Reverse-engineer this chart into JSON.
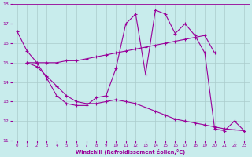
{
  "xlabel": "Windchill (Refroidissement éolien,°C)",
  "bg_color": "#c8ecec",
  "line_color": "#990099",
  "grid_color": "#aacccc",
  "ylim": [
    11,
    18
  ],
  "xlim": [
    -0.5,
    23.5
  ],
  "yticks": [
    11,
    12,
    13,
    14,
    15,
    16,
    17,
    18
  ],
  "xticks": [
    0,
    1,
    2,
    3,
    4,
    5,
    6,
    7,
    8,
    9,
    10,
    11,
    12,
    13,
    14,
    15,
    16,
    17,
    18,
    19,
    20,
    21,
    22,
    23
  ],
  "line1_x": [
    0,
    1,
    2,
    3,
    4,
    5,
    6,
    7,
    8,
    9,
    10,
    11,
    12,
    13,
    14,
    15,
    16,
    17,
    18,
    19,
    20,
    21,
    22,
    23
  ],
  "line1_y": [
    16.6,
    15.6,
    15.0,
    14.2,
    13.3,
    12.9,
    12.8,
    12.8,
    13.2,
    13.3,
    14.7,
    17.0,
    17.5,
    14.4,
    17.7,
    17.5,
    16.5,
    17.0,
    16.4,
    15.5,
    11.6,
    11.5,
    12.0,
    11.5
  ],
  "line2_x": [
    1,
    2,
    3,
    4,
    5,
    6,
    7,
    8,
    9,
    10,
    11,
    12,
    13,
    14,
    15,
    16,
    17,
    18,
    19,
    20
  ],
  "line2_y": [
    15.0,
    15.0,
    15.0,
    15.0,
    15.1,
    15.1,
    15.2,
    15.3,
    15.4,
    15.5,
    15.6,
    15.7,
    15.8,
    15.9,
    16.0,
    16.1,
    16.2,
    16.3,
    16.4,
    15.5
  ],
  "line3_x": [
    1,
    2,
    3,
    4,
    5,
    6,
    7,
    8,
    9,
    10,
    11,
    12,
    13,
    14,
    15,
    16,
    17,
    18,
    19,
    20,
    21,
    22,
    23
  ],
  "line3_y": [
    15.0,
    14.8,
    14.3,
    13.8,
    13.3,
    13.0,
    12.9,
    12.9,
    13.0,
    13.1,
    13.0,
    12.9,
    12.7,
    12.5,
    12.3,
    12.1,
    12.0,
    11.9,
    11.8,
    11.7,
    11.6,
    11.55,
    11.5
  ]
}
